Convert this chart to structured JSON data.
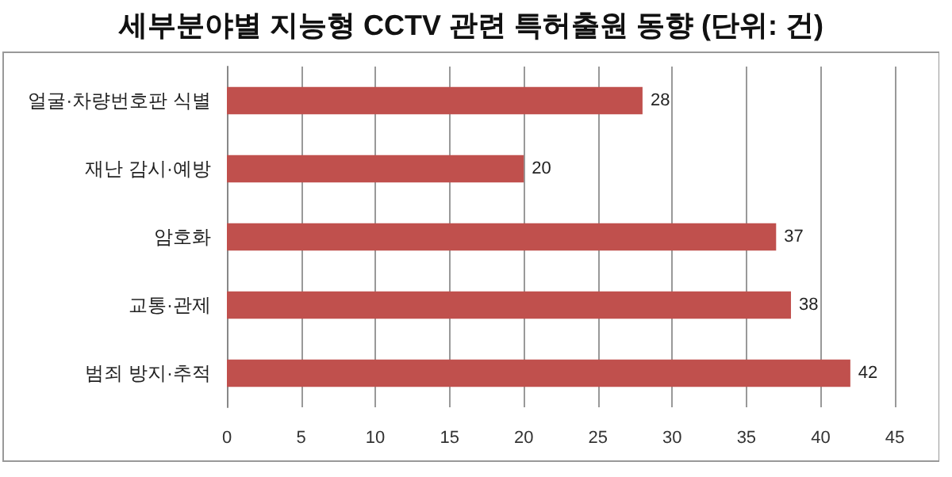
{
  "chart_data": {
    "type": "bar",
    "orientation": "horizontal",
    "title": "세부분야별 지능형 CCTV 관련 특허출원 동향 (단위: 건)",
    "categories": [
      "얼굴·차량번호판 식별",
      "재난 감시·예방",
      "암호화",
      "교통·관제",
      "범죄 방지·추적"
    ],
    "values": [
      28,
      20,
      37,
      38,
      42
    ],
    "color": "#c0504d",
    "xlim": [
      0,
      45
    ],
    "xticks": [
      0,
      5,
      10,
      15,
      20,
      25,
      30,
      35,
      40,
      45
    ],
    "grid": "x",
    "data_labels": true
  }
}
